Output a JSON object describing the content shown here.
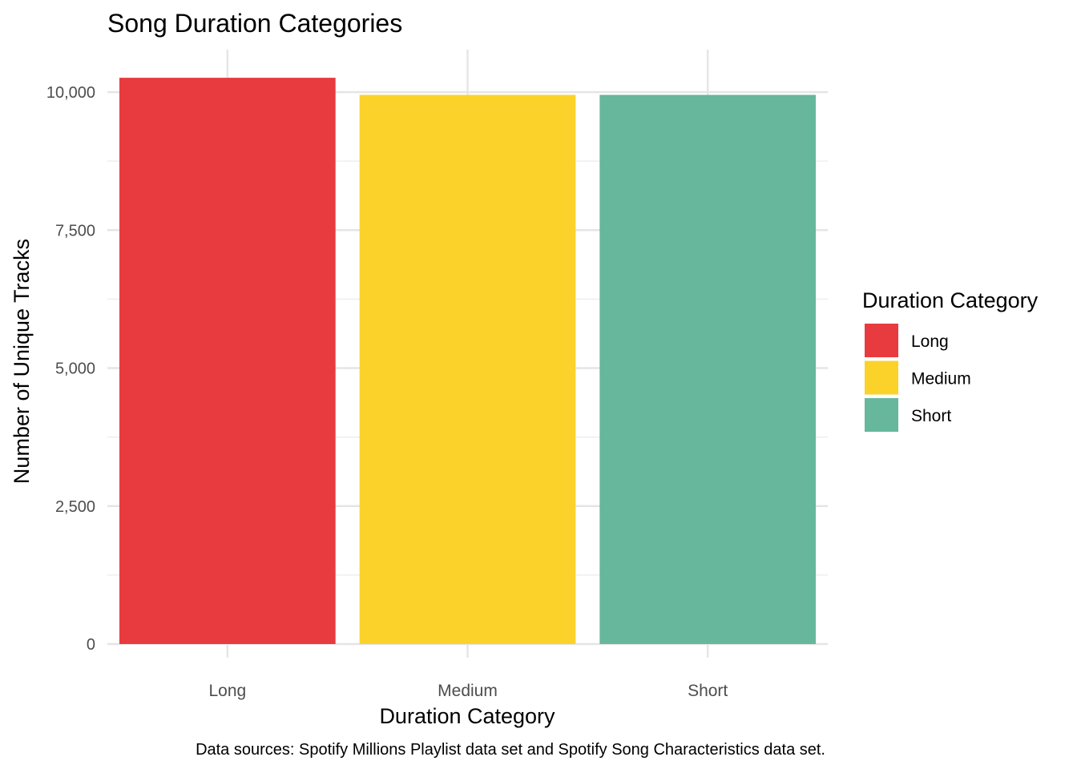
{
  "chart_data": {
    "type": "bar",
    "title": "Song Duration Categories",
    "xlabel": "Duration Category",
    "ylabel": "Number of Unique Tracks",
    "caption": "Data sources: Spotify Millions Playlist data set and Spotify Song Characteristics data set.",
    "categories": [
      "Long",
      "Medium",
      "Short"
    ],
    "values": [
      10260,
      9950,
      9950
    ],
    "colors": [
      "#E83B3F",
      "#FBD22A",
      "#66B79C"
    ],
    "ylim": [
      0,
      10500
    ],
    "y_ticks": [
      0,
      2500,
      5000,
      7500,
      10000
    ],
    "y_tick_labels": [
      "0",
      "2,500",
      "5,000",
      "7,500",
      "10,000"
    ],
    "grid": true,
    "legend": {
      "title": "Duration Category",
      "position": "right",
      "entries": [
        "Long",
        "Medium",
        "Short"
      ]
    }
  }
}
